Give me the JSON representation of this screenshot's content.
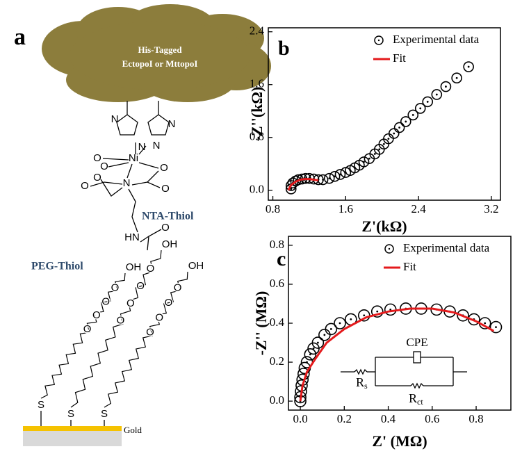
{
  "panel_a": {
    "label": "a",
    "cloud_text": [
      "His-Tagged",
      "EctopoI or MttopoI"
    ],
    "nta_label": "NTA-Thiol",
    "peg_label": "PEG-Thiol",
    "substrate": "Gold",
    "nta_atoms": [
      "N",
      "N",
      "N",
      "N",
      "Ni",
      "O",
      "O",
      "O",
      "O",
      "O",
      "O",
      "N",
      "HN",
      "O"
    ],
    "peg_chains": [
      {
        "terminal": "OH",
        "ethers": [
          "O",
          "O",
          "O",
          "O"
        ],
        "anchor": "S"
      },
      {
        "terminal": "OH",
        "ethers": [
          "O",
          "O",
          "O",
          "O"
        ],
        "anchor": "S"
      },
      {
        "terminal": "OH",
        "ethers": [
          "O",
          "O",
          "O",
          "O"
        ],
        "anchor": "S"
      }
    ]
  },
  "chart_data": [
    {
      "type": "scatter",
      "panel_label": "b",
      "x_label": "Z'(kΩ)",
      "y_label": "-Z''(kΩ)",
      "xlim": [
        0.75,
        3.3
      ],
      "xticks": [
        0.8,
        1.6,
        2.4,
        3.2
      ],
      "ylim": [
        -0.15,
        2.46
      ],
      "yticks": [
        {
          "value": 0,
          "label": "0.0"
        },
        0.8,
        1.6,
        2.4
      ],
      "legend": "top-right",
      "series": [
        {
          "name": "Experimental data",
          "mode": "markers",
          "color": "#000000",
          "x": [
            1.0,
            1.0,
            1.02,
            1.05,
            1.08,
            1.12,
            1.16,
            1.2,
            1.25,
            1.3,
            1.35,
            1.42,
            1.48,
            1.54,
            1.6,
            1.65,
            1.7,
            1.75,
            1.8,
            1.86,
            1.92,
            1.97,
            2.02,
            2.07,
            2.13,
            2.19,
            2.26,
            2.34,
            2.42,
            2.5,
            2.6,
            2.7,
            2.82,
            2.95
          ],
          "values": [
            0.02,
            0.07,
            0.11,
            0.14,
            0.16,
            0.17,
            0.18,
            0.18,
            0.17,
            0.16,
            0.16,
            0.18,
            0.21,
            0.24,
            0.27,
            0.3,
            0.34,
            0.38,
            0.43,
            0.48,
            0.55,
            0.62,
            0.7,
            0.78,
            0.86,
            0.95,
            1.04,
            1.14,
            1.24,
            1.34,
            1.45,
            1.57,
            1.7,
            1.87
          ]
        },
        {
          "name": "Fit",
          "mode": "lines",
          "color": "#e41a1c",
          "x": [
            0.97,
            1.0,
            1.05,
            1.1,
            1.15,
            1.2,
            1.25,
            1.3
          ],
          "values": [
            0.0,
            0.08,
            0.13,
            0.16,
            0.17,
            0.17,
            0.16,
            0.15
          ]
        }
      ]
    },
    {
      "type": "scatter",
      "panel_label": "c",
      "x_label": "Z' (MΩ)",
      "y_label": "-Z'' (MΩ)",
      "xlim": [
        -0.054,
        0.958
      ],
      "xticks": [
        {
          "value": 0,
          "label": "0.0"
        },
        0.2,
        0.4,
        0.6,
        0.8
      ],
      "ylim": [
        -0.046,
        0.846
      ],
      "yticks": [
        {
          "value": 0,
          "label": "0.0"
        },
        0.2,
        0.4,
        0.6,
        0.8
      ],
      "legend": "top-right",
      "circuit": {
        "cpe": "CPE",
        "rs": [
          "R",
          "s"
        ],
        "rct": [
          "R",
          "ct"
        ]
      },
      "series": [
        {
          "name": "Experimental data",
          "mode": "markers",
          "color": "#000000",
          "x": [
            0.0,
            0.0,
            0.003,
            0.006,
            0.01,
            0.015,
            0.02,
            0.03,
            0.045,
            0.06,
            0.08,
            0.11,
            0.14,
            0.18,
            0.23,
            0.29,
            0.35,
            0.41,
            0.48,
            0.55,
            0.62,
            0.68,
            0.74,
            0.79,
            0.84,
            0.89
          ],
          "values": [
            0.0,
            0.02,
            0.05,
            0.08,
            0.11,
            0.14,
            0.17,
            0.2,
            0.24,
            0.27,
            0.3,
            0.34,
            0.37,
            0.4,
            0.42,
            0.44,
            0.46,
            0.47,
            0.475,
            0.475,
            0.47,
            0.46,
            0.44,
            0.42,
            0.4,
            0.38
          ]
        },
        {
          "name": "Fit",
          "mode": "lines",
          "color": "#e41a1c",
          "x": [
            0.0,
            0.01,
            0.03,
            0.07,
            0.12,
            0.2,
            0.3,
            0.4,
            0.5,
            0.6,
            0.7,
            0.8,
            0.88
          ],
          "values": [
            0.0,
            0.08,
            0.15,
            0.22,
            0.3,
            0.37,
            0.43,
            0.46,
            0.475,
            0.475,
            0.455,
            0.41,
            0.36
          ]
        }
      ]
    }
  ]
}
